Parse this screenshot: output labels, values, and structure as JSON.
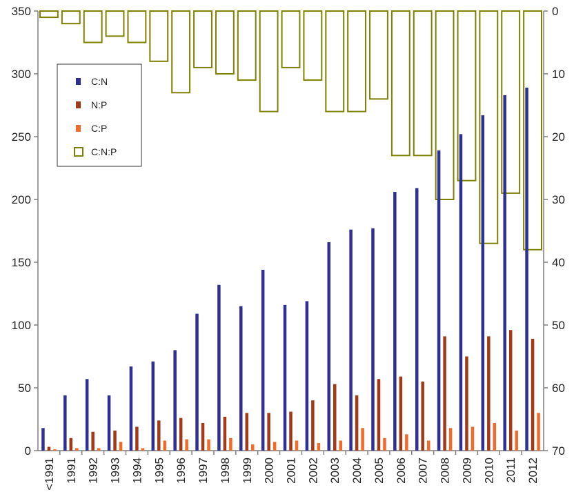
{
  "chart_data": {
    "type": "bar",
    "categories": [
      "<1991",
      "1991",
      "1992",
      "1993",
      "1994",
      "1995",
      "1996",
      "1997",
      "1998",
      "1999",
      "2000",
      "2001",
      "2002",
      "2003",
      "2004",
      "2005",
      "2006",
      "2007",
      "2008",
      "2009",
      "2010",
      "2011",
      "2012"
    ],
    "series": [
      {
        "name": "C:N",
        "axis": "left",
        "color": "#2E3192",
        "values": [
          18,
          44,
          57,
          44,
          67,
          71,
          80,
          109,
          132,
          115,
          144,
          116,
          119,
          166,
          176,
          177,
          206,
          209,
          239,
          252,
          267,
          283,
          289
        ]
      },
      {
        "name": "N:P",
        "axis": "left",
        "color": "#A23A1A",
        "values": [
          3,
          10,
          15,
          16,
          19,
          24,
          26,
          22,
          27,
          30,
          30,
          31,
          40,
          53,
          44,
          57,
          59,
          55,
          91,
          75,
          91,
          96,
          89
        ]
      },
      {
        "name": "C:P",
        "axis": "left",
        "color": "#F26B2A",
        "values": [
          1,
          2,
          2,
          7,
          2,
          8,
          9,
          9,
          10,
          5,
          7,
          8,
          6,
          8,
          18,
          10,
          13,
          8,
          18,
          19,
          22,
          16,
          30
        ]
      },
      {
        "name": "C:N:P",
        "axis": "right",
        "color": "#7F7F00",
        "values": [
          1,
          2,
          5,
          4,
          5,
          8,
          13,
          9,
          10,
          11,
          16,
          9,
          11,
          16,
          16,
          14,
          23,
          23,
          30,
          27,
          37,
          29,
          38
        ]
      }
    ],
    "left_axis": {
      "ylim": [
        0,
        350
      ],
      "ticks": [
        "0",
        "50",
        "100",
        "150",
        "200",
        "250",
        "300",
        "350"
      ]
    },
    "right_axis": {
      "ylim": [
        0,
        70
      ],
      "inverted": true,
      "ticks": [
        "0",
        "10",
        "20",
        "30",
        "40",
        "50",
        "60",
        "70"
      ]
    },
    "legend": {
      "position": "top-left",
      "entries": [
        "C:N",
        "N:P",
        "C:P",
        "C:N:P"
      ]
    },
    "grid": false
  }
}
